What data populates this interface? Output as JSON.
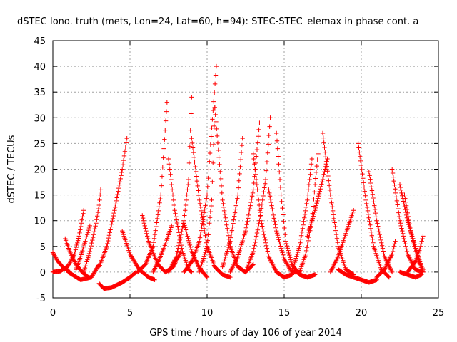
{
  "chart_data": {
    "type": "scatter",
    "title": "dSTEC Iono. truth (mets, Lon=24, Lat=60, h=94): STEC-STEC_elemax in phase cont. a",
    "xlabel": "GPS time / hours of day 106 of year 2014",
    "ylabel": "dSTEC  / TECUs",
    "xlim": [
      0,
      25
    ],
    "ylim": [
      -5,
      45
    ],
    "xticks": [
      0,
      5,
      10,
      15,
      20,
      25
    ],
    "yticks": [
      -5,
      0,
      5,
      10,
      15,
      20,
      25,
      30,
      35,
      40,
      45
    ],
    "grid": true,
    "marker": "plus",
    "color": "#ff0000",
    "arcs": [
      {
        "x": [
          0.0,
          0.3,
          0.7,
          1.1
        ],
        "y": [
          3.8,
          2.2,
          0.8,
          0.0
        ]
      },
      {
        "x": [
          0.0,
          0.5,
          1.0,
          1.4,
          1.7,
          2.0
        ],
        "y": [
          0.0,
          0.2,
          1.2,
          3.5,
          7.0,
          12.0
        ]
      },
      {
        "x": [
          0.8,
          1.1,
          1.5,
          1.9,
          2.3
        ],
        "y": [
          6.5,
          4.0,
          1.5,
          0.0,
          -1.0
        ]
      },
      {
        "x": [
          1.5,
          1.8,
          2.1,
          2.4
        ],
        "y": [
          0.5,
          3.0,
          6.0,
          9.0
        ]
      },
      {
        "x": [
          1.0,
          1.8,
          2.5,
          3.0
        ],
        "y": [
          0.0,
          -1.5,
          -1.0,
          1.5
        ]
      },
      {
        "x": [
          2.0,
          2.4,
          2.8,
          3.0,
          3.1
        ],
        "y": [
          0.0,
          4.0,
          9.5,
          13.0,
          16.0
        ]
      },
      {
        "x": [
          3.0,
          3.3,
          3.8,
          4.5,
          5.0,
          5.4
        ],
        "y": [
          -2.2,
          -3.2,
          -3.0,
          -2.0,
          -1.0,
          0.0
        ]
      },
      {
        "x": [
          3.0,
          3.5,
          4.0,
          4.5,
          4.8
        ],
        "y": [
          1.0,
          5.0,
          12.0,
          20.0,
          26.0
        ]
      },
      {
        "x": [
          4.5,
          5.0,
          5.6,
          6.2,
          6.6
        ],
        "y": [
          8.0,
          3.5,
          0.5,
          -1.0,
          -1.5
        ]
      },
      {
        "x": [
          5.5,
          6.0,
          6.5,
          7.0,
          7.4
        ],
        "y": [
          0.0,
          1.5,
          5.0,
          15.0,
          33.0
        ]
      },
      {
        "x": [
          5.8,
          6.2,
          6.8,
          7.3,
          7.8,
          8.3
        ],
        "y": [
          11.0,
          6.0,
          1.5,
          0.0,
          1.0,
          4.0
        ]
      },
      {
        "x": [
          6.5,
          6.9,
          7.3,
          7.7
        ],
        "y": [
          0.0,
          2.5,
          5.5,
          9.0
        ]
      },
      {
        "x": [
          7.5,
          7.9,
          8.4,
          8.8,
          9.0
        ],
        "y": [
          22.0,
          12.0,
          4.0,
          0.5,
          0.0
        ]
      },
      {
        "x": [
          7.5,
          8.0,
          8.5,
          8.8,
          9.0
        ],
        "y": [
          0.0,
          3.0,
          10.0,
          18.0,
          34.0
        ]
      },
      {
        "x": [
          8.5,
          9.0,
          9.5,
          10.0
        ],
        "y": [
          9.5,
          4.0,
          0.8,
          -1.0
        ]
      },
      {
        "x": [
          8.5,
          9.0,
          9.5,
          10.0,
          10.3,
          10.6
        ],
        "y": [
          0.0,
          2.0,
          6.0,
          15.0,
          28.0,
          40.0
        ]
      },
      {
        "x": [
          9.0,
          9.5,
          10.0,
          10.5,
          11.0,
          11.5
        ],
        "y": [
          26.0,
          14.0,
          5.0,
          1.0,
          -0.5,
          -1.0
        ]
      },
      {
        "x": [
          9.5,
          10.0,
          10.3,
          10.5
        ],
        "y": [
          0.0,
          5.0,
          14.0,
          32.0
        ]
      },
      {
        "x": [
          10.5,
          11.0,
          11.5,
          12.0,
          12.5,
          13.0
        ],
        "y": [
          32.0,
          14.0,
          5.0,
          1.0,
          0.0,
          1.5
        ]
      },
      {
        "x": [
          11.0,
          11.5,
          12.0,
          12.3
        ],
        "y": [
          1.0,
          6.0,
          15.0,
          26.0
        ]
      },
      {
        "x": [
          11.5,
          12.0,
          12.5,
          13.0,
          13.4
        ],
        "y": [
          0.0,
          3.0,
          8.0,
          16.0,
          29.0
        ]
      },
      {
        "x": [
          12.5,
          13.0,
          13.4,
          13.8,
          14.1
        ],
        "y": [
          0.0,
          4.0,
          10.0,
          18.0,
          30.0
        ]
      },
      {
        "x": [
          13.0,
          13.5,
          14.0,
          14.5,
          15.0,
          15.5
        ],
        "y": [
          23.0,
          10.0,
          3.0,
          0.0,
          -1.0,
          -0.5
        ]
      },
      {
        "x": [
          14.0,
          14.5,
          15.0,
          15.5,
          16.0
        ],
        "y": [
          16.0,
          8.0,
          2.5,
          0.0,
          0.0
        ]
      },
      {
        "x": [
          14.5,
          14.8,
          15.1,
          15.5,
          16.0,
          16.5,
          17.0
        ],
        "y": [
          27.0,
          15.0,
          6.0,
          1.5,
          -0.5,
          -1.0,
          -0.5
        ]
      },
      {
        "x": [
          15.5,
          16.0,
          16.5,
          16.8
        ],
        "y": [
          0.0,
          5.0,
          14.0,
          22.0
        ]
      },
      {
        "x": [
          16.0,
          16.4,
          16.8,
          17.0,
          17.2
        ],
        "y": [
          0.0,
          3.5,
          10.0,
          17.0,
          23.0
        ]
      },
      {
        "x": [
          16.5,
          17.0,
          17.5,
          17.8
        ],
        "y": [
          7.0,
          12.0,
          18.0,
          22.0
        ]
      },
      {
        "x": [
          17.5,
          18.0,
          18.5,
          19.0,
          19.5
        ],
        "y": [
          27.0,
          15.0,
          5.0,
          0.5,
          -0.5
        ]
      },
      {
        "x": [
          18.0,
          18.5,
          19.0,
          19.5
        ],
        "y": [
          0.0,
          3.0,
          7.5,
          12.0
        ]
      },
      {
        "x": [
          19.8,
          20.3,
          20.8,
          21.3,
          21.8
        ],
        "y": [
          25.0,
          14.0,
          5.0,
          0.5,
          -1.0
        ]
      },
      {
        "x": [
          18.5,
          19.0,
          19.5,
          20.0,
          20.5,
          21.0
        ],
        "y": [
          0.5,
          -0.5,
          -1.0,
          -1.5,
          -2.0,
          -1.5
        ]
      },
      {
        "x": [
          20.5,
          21.0,
          21.5,
          22.0
        ],
        "y": [
          19.5,
          10.0,
          3.0,
          0.0
        ]
      },
      {
        "x": [
          21.0,
          21.5,
          22.0,
          22.2
        ],
        "y": [
          -1.0,
          0.5,
          3.5,
          6.0
        ]
      },
      {
        "x": [
          22.0,
          22.5,
          23.0,
          23.5,
          24.0
        ],
        "y": [
          20.0,
          10.0,
          3.5,
          0.5,
          0.0
        ]
      },
      {
        "x": [
          22.5,
          23.0,
          23.5,
          23.8,
          24.0
        ],
        "y": [
          17.0,
          10.0,
          5.0,
          2.0,
          0.5
        ]
      },
      {
        "x": [
          22.8,
          23.2,
          23.6,
          24.0
        ],
        "y": [
          15.0,
          8.0,
          3.0,
          0.0
        ]
      },
      {
        "x": [
          23.0,
          23.5,
          23.8,
          24.0
        ],
        "y": [
          0.0,
          2.0,
          4.5,
          7.0
        ]
      },
      {
        "x": [
          22.5,
          23.0,
          23.5,
          23.9
        ],
        "y": [
          0.0,
          -0.5,
          -1.0,
          -0.5
        ]
      }
    ]
  }
}
